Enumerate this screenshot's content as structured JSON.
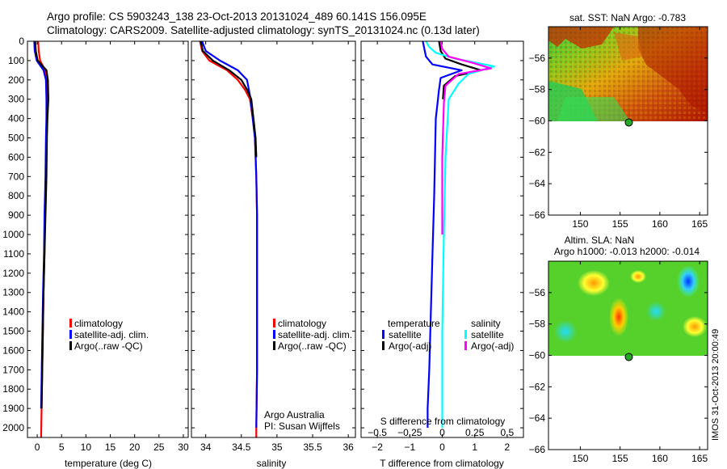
{
  "title_line1": "Argo profile: CS 5903243_138 23-Oct-2013 20131024_489 60.141S 156.095E",
  "title_line2": "Climatology: CARS2009. Satellite-adjusted climatology: synTS_20131024.nc (0.13d later)",
  "footer_stamp": "IMOS 31-Oct-2013 20:00:49",
  "colors": {
    "clim": "#ff0000",
    "sat": "#0000ff",
    "argo": "#000000",
    "sal_sat": "#00ffff",
    "sal_argo": "#ff00ff",
    "marker": "#22aa22"
  },
  "legend1": [
    {
      "label": "climatology",
      "color": "#ff0000"
    },
    {
      "label": "satellite-adj. clim.",
      "color": "#0000ff"
    },
    {
      "label": "Argo(..raw -QC)",
      "color": "#000000"
    }
  ],
  "legend2": [
    {
      "label": "climatology",
      "color": "#ff0000"
    },
    {
      "label": "satellite-adj. clim.",
      "color": "#0000ff"
    },
    {
      "label": "Argo(..raw -QC)",
      "color": "#000000"
    }
  ],
  "legend3": {
    "temp_header": "temperature",
    "sal_header": "salinity",
    "temp_items": [
      {
        "label": "satellite",
        "color": "#0000ff"
      },
      {
        "label": "Argo(-adj)",
        "color": "#000000"
      }
    ],
    "sal_items": [
      {
        "label": "satellite",
        "color": "#00ffff"
      },
      {
        "label": "Argo(-adj)",
        "color": "#ff00ff"
      }
    ]
  },
  "annot_institution": "Argo Australia",
  "annot_pi": "PI: Susan Wijffels",
  "sst_title": "sat. SST: NaN Argo: -0.783",
  "sla_title1": "Altim. SLA: NaN",
  "sla_title2": "Argo h1000: -0.013 h2000: -0.014",
  "chart_data": [
    {
      "type": "line",
      "panel": "temperature",
      "xlabel": "temperature (deg C)",
      "ylabel": "",
      "xlim": [
        -2,
        31
      ],
      "ylim": [
        2050,
        0
      ],
      "xticks": [
        0,
        5,
        10,
        15,
        20,
        25,
        30
      ],
      "yticks": [
        0,
        100,
        200,
        300,
        400,
        500,
        600,
        700,
        800,
        900,
        1000,
        1100,
        1200,
        1300,
        1400,
        1500,
        1600,
        1700,
        1800,
        1900,
        2000
      ],
      "series": [
        {
          "name": "climatology",
          "color": "#ff0000",
          "x": [
            0.2,
            0.3,
            0.6,
            1.6,
            2.0,
            2.1,
            2.0,
            1.9,
            1.8,
            1.6,
            1.5,
            1.3,
            1.1,
            0.9,
            0.8
          ],
          "y": [
            0,
            50,
            100,
            150,
            200,
            300,
            400,
            500,
            700,
            900,
            1100,
            1300,
            1600,
            1900,
            2050
          ]
        },
        {
          "name": "satellite-adj. clim.",
          "color": "#0000ff",
          "x": [
            -0.6,
            -0.5,
            -0.1,
            1.3,
            1.8,
            1.9,
            1.9,
            1.8,
            1.7,
            1.5,
            1.4,
            1.2,
            1.0,
            0.8
          ],
          "y": [
            0,
            50,
            100,
            150,
            200,
            300,
            400,
            500,
            700,
            900,
            1100,
            1300,
            1600,
            1900
          ]
        },
        {
          "name": "Argo(..raw -QC)",
          "color": "#000000",
          "x": [
            -0.4,
            -0.3,
            0.1,
            1.9,
            2.2,
            2.3,
            2.1,
            2.0,
            1.9,
            1.7,
            1.5,
            1.3,
            1.1,
            0.9
          ],
          "y": [
            0,
            50,
            100,
            150,
            200,
            300,
            400,
            500,
            700,
            900,
            1100,
            1300,
            1600,
            1900
          ]
        }
      ]
    },
    {
      "type": "line",
      "panel": "salinity",
      "xlabel": "salinity",
      "xlim": [
        33.8,
        36.1
      ],
      "ylim": [
        2050,
        0
      ],
      "xticks": [
        34,
        34.5,
        35,
        35.5,
        36
      ],
      "series": [
        {
          "name": "climatology",
          "color": "#ff0000",
          "x": [
            33.92,
            33.95,
            34.05,
            34.3,
            34.45,
            34.55,
            34.62,
            34.66,
            34.69,
            34.71,
            34.72,
            34.72,
            34.72,
            34.72,
            34.71,
            34.71
          ],
          "y": [
            0,
            50,
            100,
            150,
            200,
            250,
            300,
            400,
            500,
            700,
            900,
            1100,
            1400,
            1700,
            2000,
            2050
          ]
        },
        {
          "name": "satellite-adj. clim.",
          "color": "#0000ff",
          "x": [
            33.95,
            34.0,
            34.2,
            34.45,
            34.58,
            34.63,
            34.66,
            34.69,
            34.71,
            34.72,
            34.72,
            34.72,
            34.72,
            34.71
          ],
          "y": [
            0,
            50,
            100,
            150,
            200,
            300,
            400,
            500,
            700,
            900,
            1100,
            1400,
            1700,
            2000
          ]
        },
        {
          "name": "Argo(..raw -QC)",
          "color": "#000000",
          "x": [
            33.93,
            33.96,
            34.1,
            34.33,
            34.5,
            34.58,
            34.64,
            34.67,
            34.7,
            34.71
          ],
          "y": [
            0,
            50,
            100,
            150,
            200,
            250,
            300,
            400,
            500,
            600
          ]
        }
      ]
    },
    {
      "type": "line",
      "panel": "difference",
      "xlabel": "T difference from climatology",
      "xlabel_top": "S difference from climatology",
      "xlim": [
        -2.5,
        2.5
      ],
      "ylim": [
        2050,
        0
      ],
      "xticks": [
        -2,
        -1,
        0,
        1,
        2
      ],
      "xticks_top": [
        -0.5,
        -0.25,
        0,
        0.25,
        0.5
      ],
      "series": [
        {
          "name": "temperature satellite",
          "color": "#0000ff",
          "x": [
            -0.6,
            -0.55,
            -0.5,
            -0.3,
            0.6,
            -0.05,
            -0.1,
            -0.2,
            -0.25,
            -0.3,
            -0.35,
            -0.4,
            -0.45,
            -0.45
          ],
          "y": [
            0,
            40,
            80,
            120,
            150,
            190,
            250,
            400,
            800,
            1100,
            1400,
            1700,
            1900,
            2000
          ]
        },
        {
          "name": "temperature Argo(-adj)",
          "color": "#000000",
          "x": [
            -0.1,
            -0.05,
            0.1,
            0.6,
            1.2,
            0.4,
            0.05,
            0.02
          ],
          "y": [
            0,
            50,
            90,
            120,
            150,
            180,
            230,
            300
          ]
        },
        {
          "name": "salinity satellite",
          "color": "#00ffff",
          "x": [
            -0.5,
            -0.4,
            -0.2,
            0.4,
            1.6,
            0.8,
            0.5,
            0.2,
            0.1,
            0.05,
            0.0,
            0.0
          ],
          "y": [
            0,
            30,
            60,
            90,
            130,
            170,
            220,
            300,
            600,
            1000,
            1500,
            2000
          ]
        },
        {
          "name": "salinity Argo(-adj)",
          "color": "#ff00ff",
          "x": [
            -0.05,
            0.0,
            0.2,
            0.9,
            1.5,
            0.5,
            0.1,
            0.05,
            0.0,
            0.0
          ],
          "y": [
            0,
            40,
            80,
            110,
            140,
            170,
            230,
            320,
            600,
            1000
          ]
        }
      ]
    },
    {
      "type": "heatmap",
      "panel": "sat_sst_map",
      "title": "sat. SST: NaN Argo: -0.783",
      "xlim": [
        146,
        166
      ],
      "ylim": [
        -66,
        -54
      ],
      "xticks": [
        150,
        155,
        160,
        165
      ],
      "yticks": [
        -56,
        -58,
        -60,
        -62,
        -64,
        -66
      ],
      "data_lat_range": [
        -60,
        -54.5
      ],
      "marker": {
        "lon": 156.1,
        "lat": -60.1
      }
    },
    {
      "type": "heatmap",
      "panel": "altim_sla_map",
      "title": "Altim. SLA: NaN / Argo h1000: -0.013 h2000: -0.014",
      "xlim": [
        146,
        166
      ],
      "ylim": [
        -66,
        -54
      ],
      "xticks": [
        150,
        155,
        160,
        165
      ],
      "yticks": [
        -56,
        -58,
        -60,
        -62,
        -64,
        -66
      ],
      "data_lat_range": [
        -60,
        -54.5
      ],
      "marker": {
        "lon": 156.1,
        "lat": -60.1
      }
    }
  ]
}
